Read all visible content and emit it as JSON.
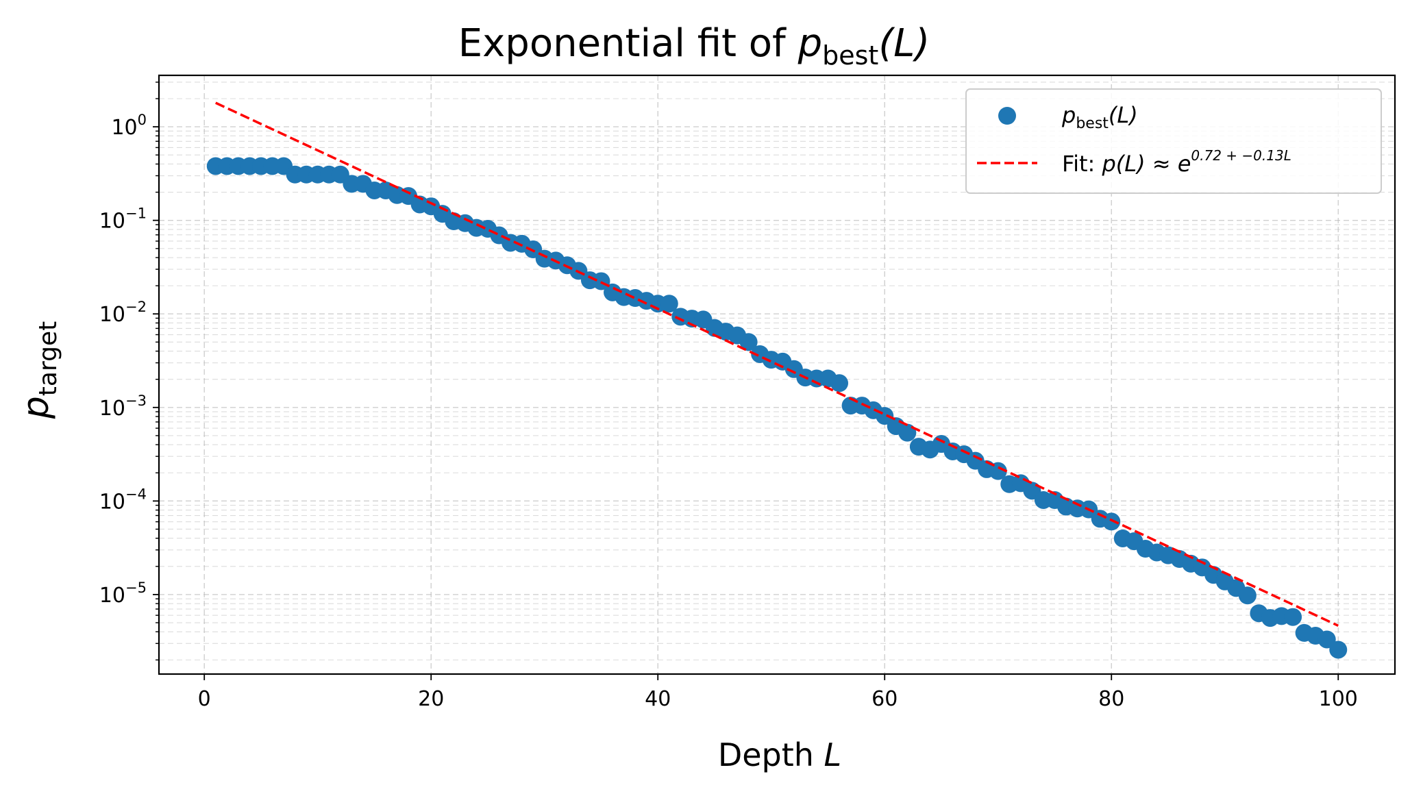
{
  "chart_data": {
    "type": "scatter",
    "title": "Exponential fit of p_best(L)",
    "title_parts": {
      "prefix": "Exponential fit of ",
      "var": "p",
      "sub": "best",
      "suffix": "(L)"
    },
    "xlabel": "Depth L",
    "xlabel_parts": {
      "text": "Depth ",
      "var": "L"
    },
    "ylabel": "p_target",
    "ylabel_parts": {
      "var": "p",
      "sub": "target"
    },
    "xlim": [
      -4,
      105
    ],
    "ylim_log10": [
      -5.85,
      0.55
    ],
    "yscale": "log",
    "grid": true,
    "x_ticks": [
      {
        "value": 0,
        "label": "0"
      },
      {
        "value": 20,
        "label": "20"
      },
      {
        "value": 40,
        "label": "40"
      },
      {
        "value": 60,
        "label": "60"
      },
      {
        "value": 80,
        "label": "80"
      },
      {
        "value": 100,
        "label": "100"
      }
    ],
    "y_ticks": [
      {
        "exp": 0,
        "base": "10",
        "sup": "0"
      },
      {
        "exp": -1,
        "base": "10",
        "sup": "−1"
      },
      {
        "exp": -2,
        "base": "10",
        "sup": "−2"
      },
      {
        "exp": -3,
        "base": "10",
        "sup": "−3"
      },
      {
        "exp": -4,
        "base": "10",
        "sup": "−4"
      },
      {
        "exp": -5,
        "base": "10",
        "sup": "−5"
      }
    ],
    "legend": {
      "position": "upper right",
      "entries": [
        {
          "kind": "marker",
          "var": "p",
          "sub": "best",
          "suffix": "(L)"
        },
        {
          "kind": "line",
          "prefix": "Fit: ",
          "expr": "p(L) ≈ e",
          "sup": "0.72 + −0.13L"
        }
      ]
    },
    "series": [
      {
        "name": "p_best(L)",
        "kind": "scatter",
        "color": "#1f77b4",
        "x": [
          1,
          2,
          3,
          4,
          5,
          6,
          7,
          8,
          9,
          10,
          11,
          12,
          13,
          14,
          15,
          16,
          17,
          18,
          19,
          20,
          21,
          22,
          23,
          24,
          25,
          26,
          27,
          28,
          29,
          30,
          31,
          32,
          33,
          34,
          35,
          36,
          37,
          38,
          39,
          40,
          41,
          42,
          43,
          44,
          45,
          46,
          47,
          48,
          49,
          50,
          51,
          52,
          53,
          54,
          55,
          56,
          57,
          58,
          59,
          60,
          61,
          62,
          63,
          64,
          65,
          66,
          67,
          68,
          69,
          70,
          71,
          72,
          73,
          74,
          75,
          76,
          77,
          78,
          79,
          80,
          81,
          82,
          83,
          84,
          85,
          86,
          87,
          88,
          89,
          90,
          91,
          92,
          93,
          94,
          95,
          96,
          97,
          98,
          99,
          100
        ],
        "log10_y": [
          -0.42,
          -0.42,
          -0.42,
          -0.42,
          -0.42,
          -0.42,
          -0.42,
          -0.51,
          -0.51,
          -0.51,
          -0.51,
          -0.51,
          -0.61,
          -0.61,
          -0.68,
          -0.68,
          -0.73,
          -0.74,
          -0.83,
          -0.85,
          -0.93,
          -1.01,
          -1.03,
          -1.08,
          -1.09,
          -1.16,
          -1.24,
          -1.25,
          -1.31,
          -1.41,
          -1.43,
          -1.48,
          -1.54,
          -1.64,
          -1.65,
          -1.77,
          -1.82,
          -1.83,
          -1.86,
          -1.89,
          -1.89,
          -2.03,
          -2.05,
          -2.06,
          -2.15,
          -2.19,
          -2.23,
          -2.3,
          -2.43,
          -2.49,
          -2.51,
          -2.59,
          -2.68,
          -2.69,
          -2.69,
          -2.74,
          -2.98,
          -2.98,
          -3.03,
          -3.09,
          -3.2,
          -3.27,
          -3.42,
          -3.45,
          -3.39,
          -3.47,
          -3.5,
          -3.57,
          -3.66,
          -3.68,
          -3.82,
          -3.81,
          -3.89,
          -3.99,
          -3.99,
          -4.06,
          -4.08,
          -4.09,
          -4.19,
          -4.22,
          -4.4,
          -4.43,
          -4.51,
          -4.55,
          -4.58,
          -4.62,
          -4.67,
          -4.71,
          -4.79,
          -4.86,
          -4.93,
          -5.01,
          -5.2,
          -5.25,
          -5.23,
          -5.24,
          -5.41,
          -5.44,
          -5.48,
          -5.59
        ]
      },
      {
        "name": "Fit",
        "kind": "line",
        "color": "#ff0000",
        "dash": "dashed",
        "intercept_ln": 0.72,
        "slope_ln": -0.13,
        "x_range": [
          1,
          100
        ]
      }
    ]
  }
}
